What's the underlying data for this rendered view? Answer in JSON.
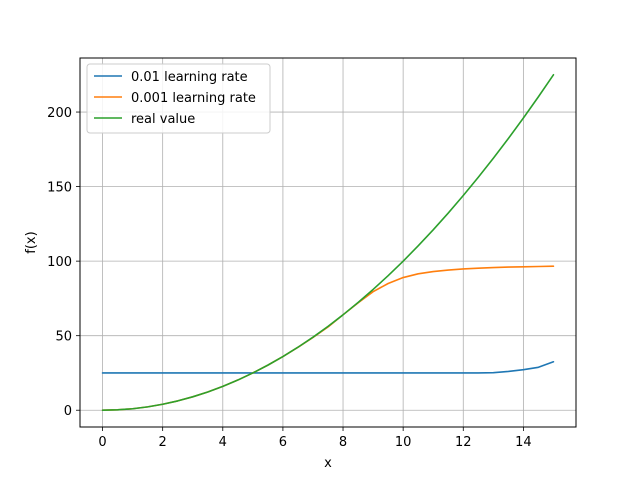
{
  "chart_data": {
    "type": "line",
    "title": "",
    "xlabel": "x",
    "ylabel": "f(x)",
    "xlim": [
      -0.75,
      15.75
    ],
    "ylim": [
      -11.25,
      236.25
    ],
    "xticks": [
      0,
      2,
      4,
      6,
      8,
      10,
      12,
      14
    ],
    "yticks": [
      0,
      50,
      100,
      150,
      200
    ],
    "grid": true,
    "legend_position": "upper-left",
    "x": [
      0,
      0.5,
      1,
      1.5,
      2,
      2.5,
      3,
      3.5,
      4,
      4.5,
      5,
      5.5,
      6,
      6.5,
      7,
      7.5,
      8,
      8.5,
      9,
      9.5,
      10,
      10.5,
      11,
      11.5,
      12,
      12.5,
      13,
      13.5,
      14,
      14.5,
      15
    ],
    "series": [
      {
        "name": "0.01 learning rate",
        "color": "#1f77b4",
        "values": [
          25,
          25,
          25,
          25,
          25,
          25,
          25,
          25,
          25,
          25,
          25,
          25,
          25,
          25,
          25,
          25,
          25,
          25,
          25,
          25,
          25,
          25,
          25,
          25,
          25,
          25,
          25.2,
          26,
          27.2,
          28.8,
          32.5
        ]
      },
      {
        "name": "0.001 learning rate",
        "color": "#ff7f0e",
        "values": [
          0,
          0.25,
          1,
          2.25,
          4,
          6.25,
          9,
          12.25,
          16,
          20.25,
          25,
          30.25,
          36,
          42.2,
          48.8,
          55.8,
          64,
          72,
          79.5,
          85,
          89,
          91.5,
          93,
          94,
          94.8,
          95.3,
          95.7,
          96,
          96.2,
          96.4,
          96.6
        ]
      },
      {
        "name": "real value",
        "color": "#2ca02c",
        "values": [
          0,
          0.25,
          1,
          2.25,
          4,
          6.25,
          9,
          12.25,
          16,
          20.25,
          25,
          30.25,
          36,
          42.25,
          49,
          56.25,
          64,
          72.25,
          81,
          90.25,
          100,
          110.25,
          121,
          132.25,
          144,
          156.25,
          169,
          182.25,
          196,
          210.25,
          225
        ]
      }
    ]
  }
}
